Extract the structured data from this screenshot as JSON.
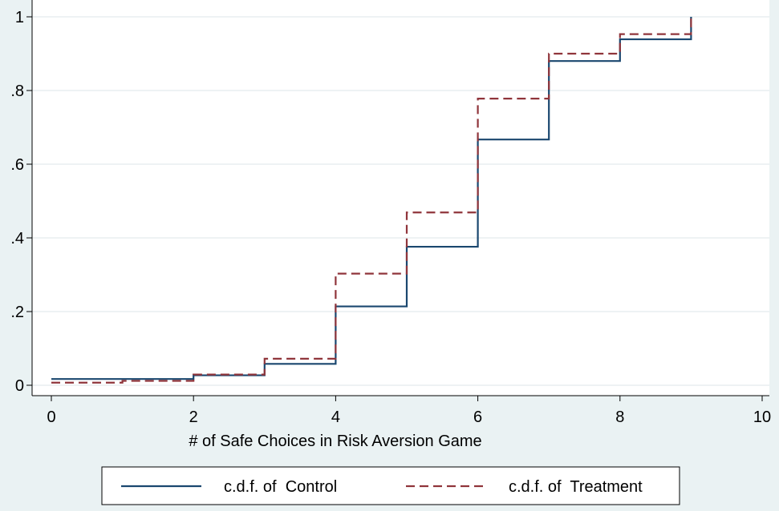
{
  "chart_data": {
    "type": "line",
    "step": true,
    "title": "",
    "xlabel": "# of Safe Choices in Risk Aversion Game",
    "ylabel": "",
    "xlim": [
      0,
      10
    ],
    "ylim": [
      0,
      1
    ],
    "x_ticks": [
      {
        "value": 0,
        "label": "0"
      },
      {
        "value": 2,
        "label": "2"
      },
      {
        "value": 4,
        "label": "4"
      },
      {
        "value": 6,
        "label": "6"
      },
      {
        "value": 8,
        "label": "8"
      },
      {
        "value": 10,
        "label": "10"
      }
    ],
    "y_ticks": [
      {
        "value": 0,
        "label": "0"
      },
      {
        "value": 0.2,
        "label": ".2"
      },
      {
        "value": 0.4,
        "label": ".4"
      },
      {
        "value": 0.6,
        "label": ".6"
      },
      {
        "value": 0.8,
        "label": ".8"
      },
      {
        "value": 1,
        "label": "1"
      }
    ],
    "grid": "horizontal",
    "legend_position": "bottom",
    "series": [
      {
        "name": "c.d.f. of  Control",
        "color": "#1a476f",
        "dash": "solid",
        "points": [
          {
            "x": 0,
            "y": 0.017
          },
          {
            "x": 2,
            "y": 0.027
          },
          {
            "x": 3,
            "y": 0.058
          },
          {
            "x": 4,
            "y": 0.214
          },
          {
            "x": 5,
            "y": 0.376
          },
          {
            "x": 6,
            "y": 0.667
          },
          {
            "x": 7,
            "y": 0.88
          },
          {
            "x": 8,
            "y": 0.939
          },
          {
            "x": 9,
            "y": 1.0
          }
        ]
      },
      {
        "name": "c.d.f. of  Treatment",
        "color": "#90353b",
        "dash": "dashed",
        "points": [
          {
            "x": 0,
            "y": 0.007
          },
          {
            "x": 1,
            "y": 0.012
          },
          {
            "x": 2,
            "y": 0.029
          },
          {
            "x": 3,
            "y": 0.072
          },
          {
            "x": 4,
            "y": 0.303
          },
          {
            "x": 5,
            "y": 0.469
          },
          {
            "x": 6,
            "y": 0.778
          },
          {
            "x": 7,
            "y": 0.9
          },
          {
            "x": 8,
            "y": 0.953
          },
          {
            "x": 9,
            "y": 1.0
          }
        ]
      }
    ]
  }
}
